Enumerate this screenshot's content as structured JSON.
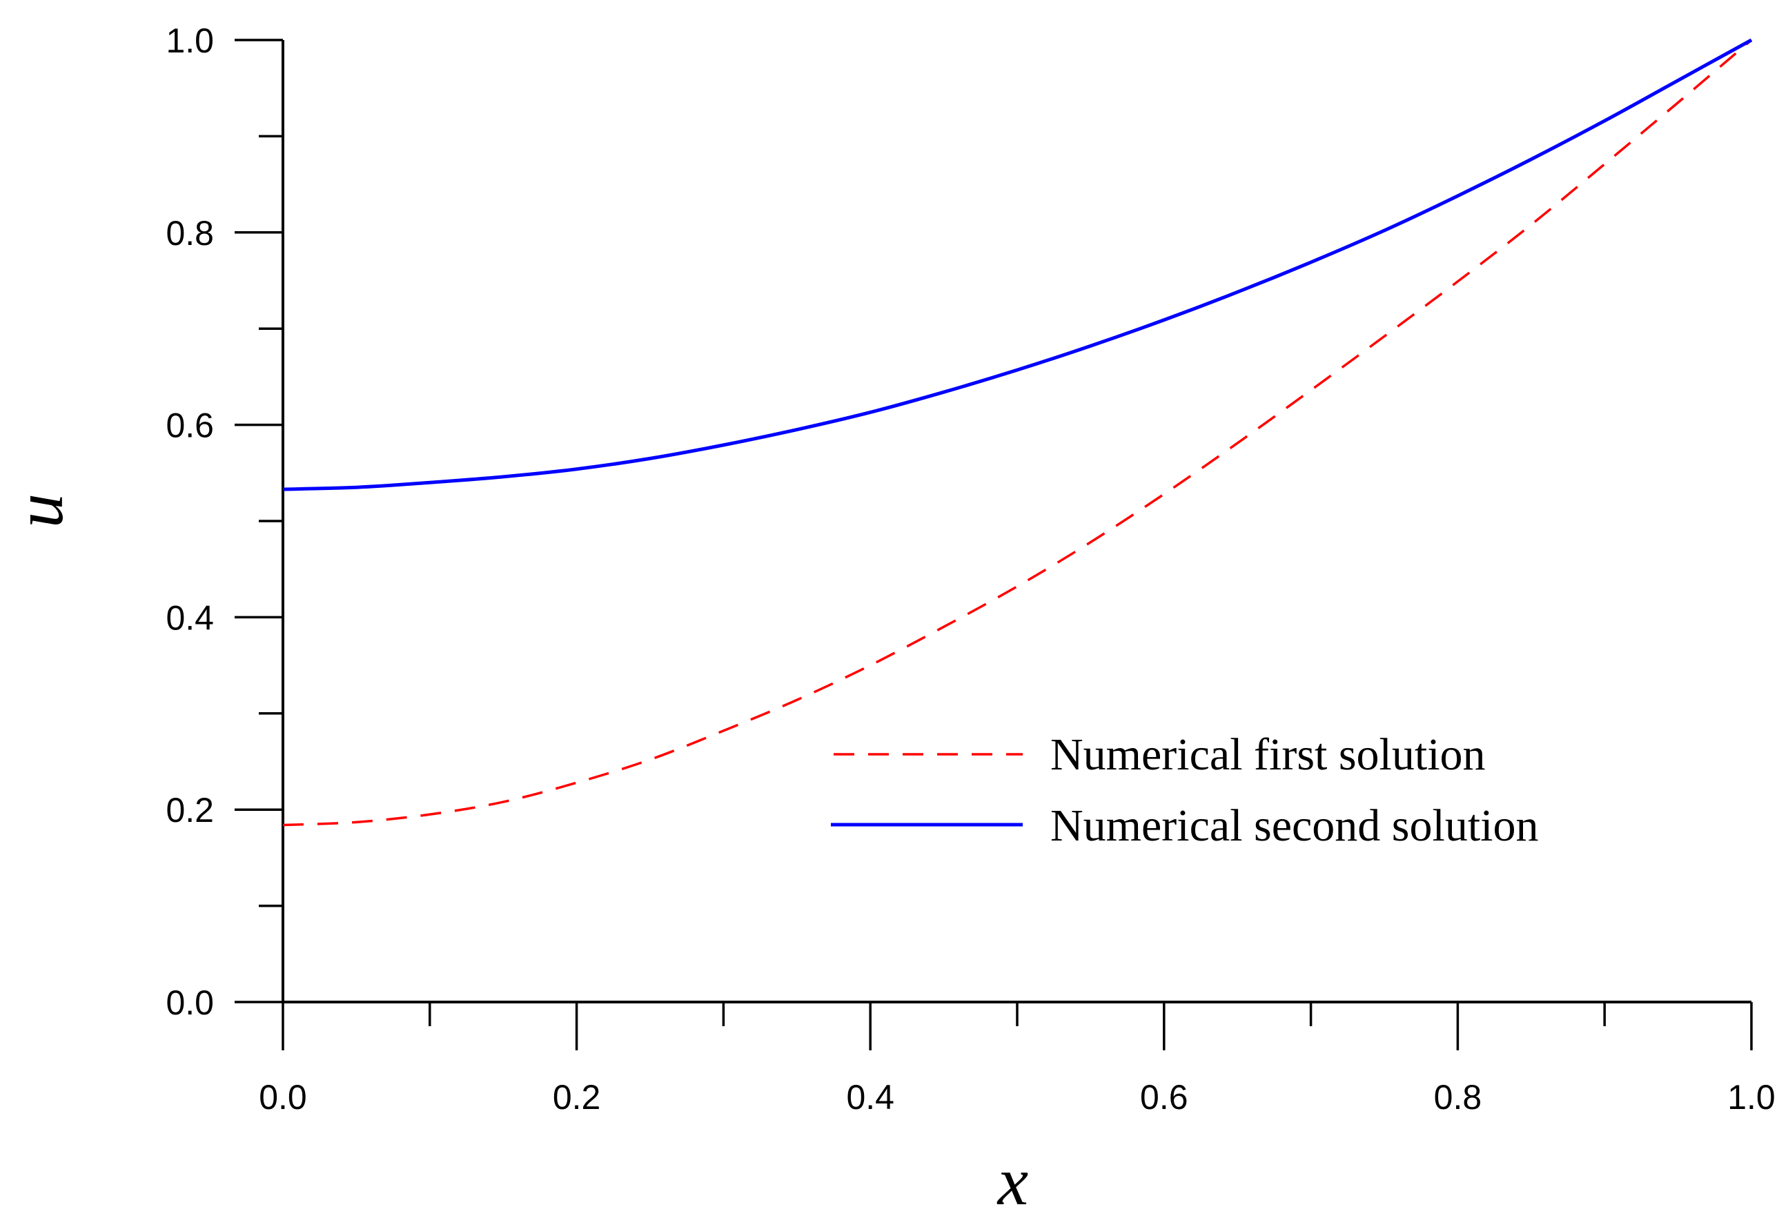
{
  "chart_data": {
    "type": "line",
    "title": "",
    "xlabel": "x",
    "ylabel": "u",
    "xlim": [
      0.0,
      1.0
    ],
    "ylim": [
      0.0,
      1.0
    ],
    "x_ticks": [
      "0.0",
      "0.2",
      "0.4",
      "0.6",
      "0.8",
      "1.0"
    ],
    "y_ticks": [
      "0.0",
      "0.2",
      "0.4",
      "0.6",
      "0.8",
      "1.0"
    ],
    "grid": false,
    "legend_position": "center-right",
    "x": [
      0.0,
      0.05,
      0.1,
      0.15,
      0.2,
      0.25,
      0.3,
      0.35,
      0.4,
      0.45,
      0.5,
      0.55,
      0.6,
      0.65,
      0.7,
      0.75,
      0.8,
      0.85,
      0.9,
      0.95,
      1.0
    ],
    "series": [
      {
        "name": "Numerical first solution",
        "color": "#ff0000",
        "style": "dashed",
        "values": [
          0.184,
          0.187,
          0.195,
          0.208,
          0.228,
          0.252,
          0.282,
          0.314,
          0.35,
          0.39,
          0.432,
          0.478,
          0.528,
          0.581,
          0.636,
          0.692,
          0.749,
          0.808,
          0.871,
          0.935,
          1.0
        ]
      },
      {
        "name": "Numerical second solution",
        "color": "#0000ff",
        "style": "solid",
        "values": [
          0.533,
          0.535,
          0.54,
          0.546,
          0.554,
          0.565,
          0.579,
          0.595,
          0.613,
          0.634,
          0.657,
          0.682,
          0.709,
          0.738,
          0.769,
          0.802,
          0.838,
          0.876,
          0.916,
          0.958,
          1.0
        ]
      }
    ]
  }
}
